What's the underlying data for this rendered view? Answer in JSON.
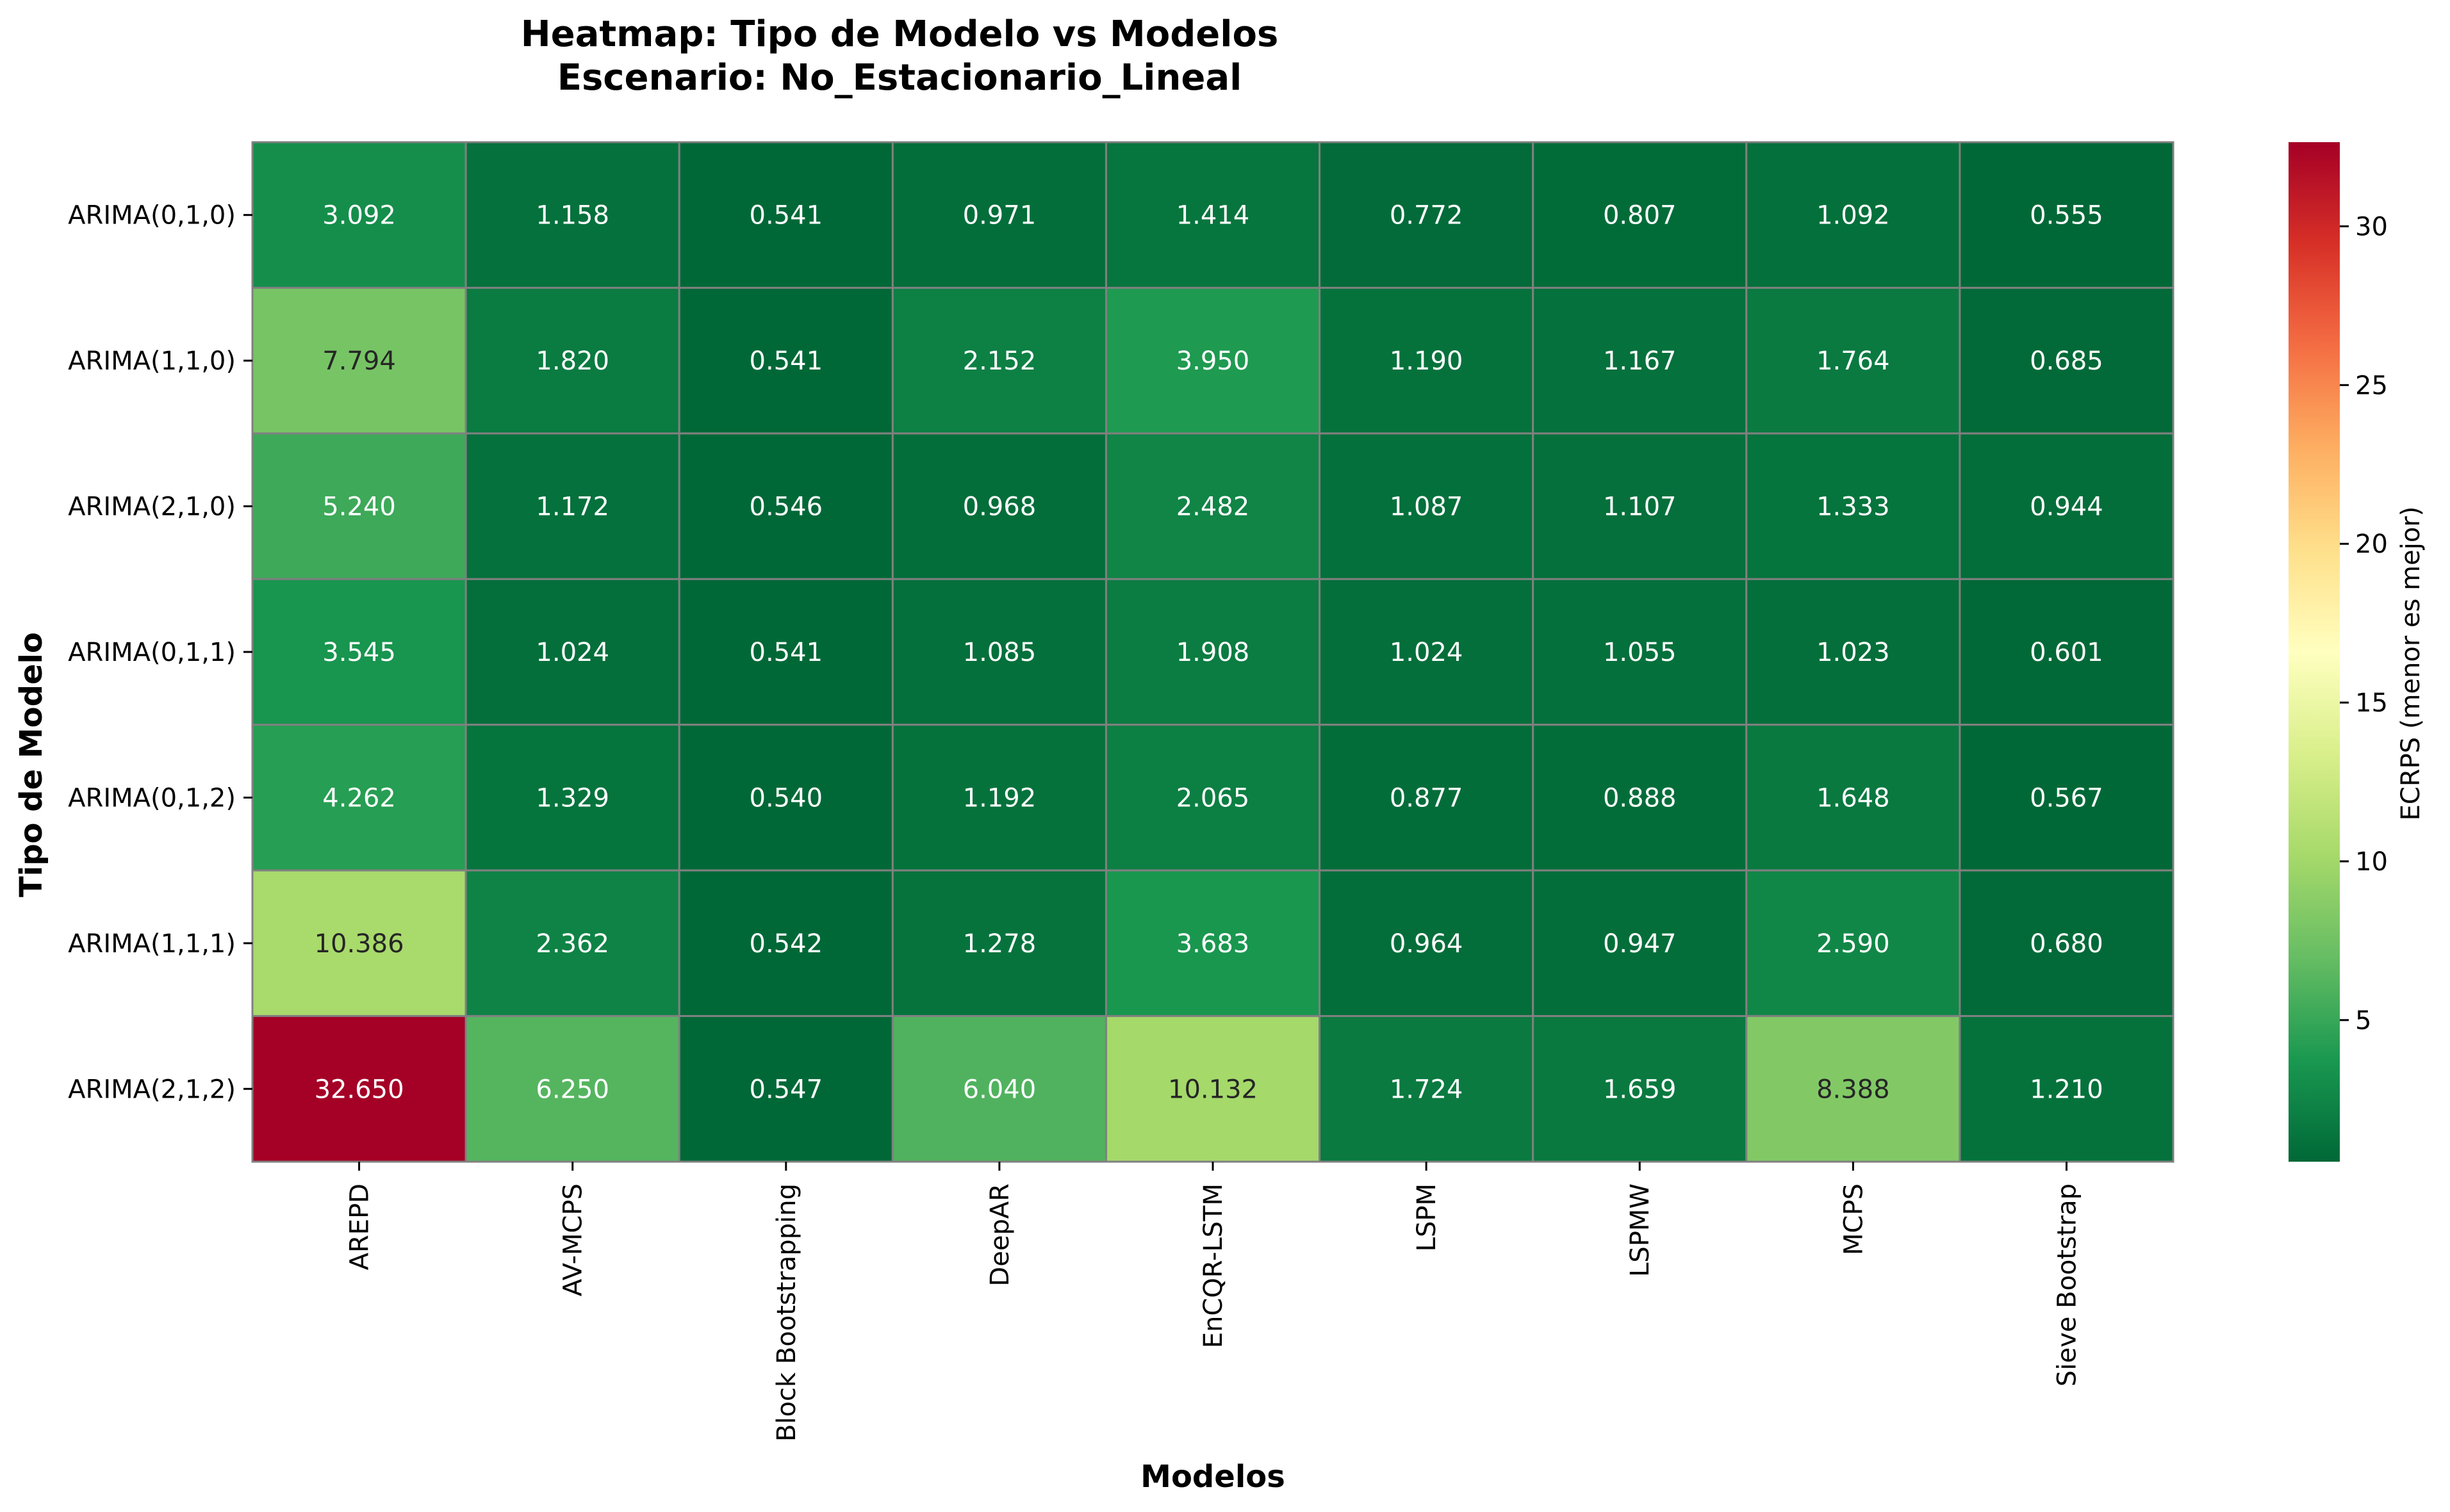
{
  "chart_data": {
    "type": "heatmap",
    "title": "Heatmap: Tipo de Modelo vs Modelos",
    "subtitle": "Escenario: No_Estacionario_Lineal",
    "xlabel": "Modelos",
    "ylabel": "Tipo de Modelo",
    "colorbar_label": "ECRPS (menor es mejor)",
    "colormap": "RdYlGn_r",
    "color_range": [
      0.54,
      32.65
    ],
    "colorbar_ticks": [
      5,
      10,
      15,
      20,
      25,
      30
    ],
    "columns": [
      "AREPD",
      "AV-MCPS",
      "Block Bootstrapping",
      "DeepAR",
      "EnCQR-LSTM",
      "LSPM",
      "LSPMW",
      "MCPS",
      "Sieve Bootstrap"
    ],
    "rows": [
      "ARIMA(0,1,0)",
      "ARIMA(1,1,0)",
      "ARIMA(2,1,0)",
      "ARIMA(0,1,1)",
      "ARIMA(0,1,2)",
      "ARIMA(1,1,1)",
      "ARIMA(2,1,2)"
    ],
    "values": [
      [
        3.092,
        1.158,
        0.541,
        0.971,
        1.414,
        0.772,
        0.807,
        1.092,
        0.555
      ],
      [
        7.794,
        1.82,
        0.541,
        2.152,
        3.95,
        1.19,
        1.167,
        1.764,
        0.685
      ],
      [
        5.24,
        1.172,
        0.546,
        0.968,
        2.482,
        1.087,
        1.107,
        1.333,
        0.944
      ],
      [
        3.545,
        1.024,
        0.541,
        1.085,
        1.908,
        1.024,
        1.055,
        1.023,
        0.601
      ],
      [
        4.262,
        1.329,
        0.54,
        1.192,
        2.065,
        0.877,
        0.888,
        1.648,
        0.567
      ],
      [
        10.386,
        2.362,
        0.542,
        1.278,
        3.683,
        0.964,
        0.947,
        2.59,
        0.68
      ],
      [
        32.65,
        6.25,
        0.547,
        6.04,
        10.132,
        1.724,
        1.659,
        8.388,
        1.21
      ]
    ],
    "cell_labels": [
      [
        "3.092",
        "1.158",
        "0.541",
        "0.971",
        "1.414",
        "0.772",
        "0.807",
        "1.092",
        "0.555"
      ],
      [
        "7.794",
        "1.820",
        "0.541",
        "2.152",
        "3.950",
        "1.190",
        "1.167",
        "1.764",
        "0.685"
      ],
      [
        "5.240",
        "1.172",
        "0.546",
        "0.968",
        "2.482",
        "1.087",
        "1.107",
        "1.333",
        "0.944"
      ],
      [
        "3.545",
        "1.024",
        "0.541",
        "1.085",
        "1.908",
        "1.024",
        "1.055",
        "1.023",
        "0.601"
      ],
      [
        "4.262",
        "1.329",
        "0.540",
        "1.192",
        "2.065",
        "0.877",
        "0.888",
        "1.648",
        "0.567"
      ],
      [
        "10.386",
        "2.362",
        "0.542",
        "1.278",
        "3.683",
        "0.964",
        "0.947",
        "2.590",
        "0.680"
      ],
      [
        "32.650",
        "6.250",
        "0.547",
        "6.040",
        "10.132",
        "1.724",
        "1.659",
        "8.388",
        "1.210"
      ]
    ]
  }
}
